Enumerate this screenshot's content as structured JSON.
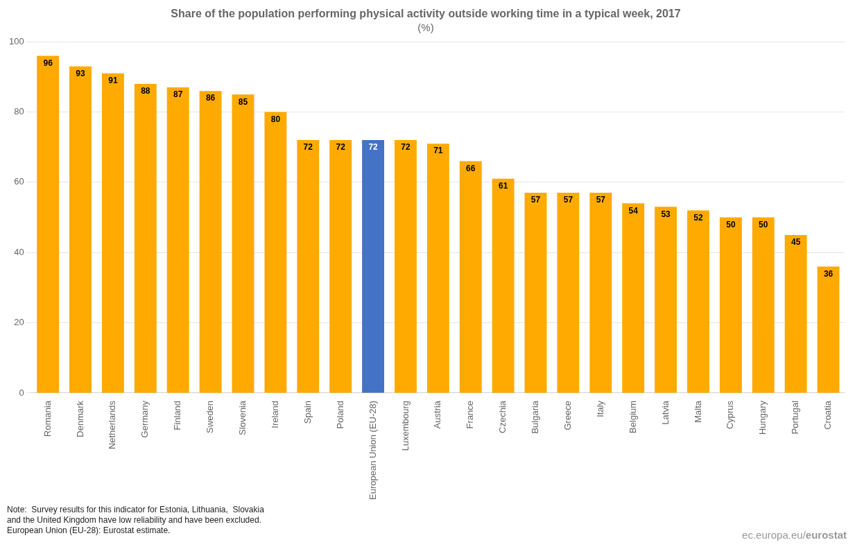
{
  "chart_data": {
    "type": "bar",
    "title": "Share of the population performing physical activity outside working time in a typical week, 2017",
    "subtitle": "(%)",
    "categories": [
      "Romania",
      "Denmark",
      "Netherlands",
      "Germany",
      "Finland",
      "Sweden",
      "Slovenia",
      "Ireland",
      "Spain",
      "Poland",
      "European Union (EU-28)",
      "Luxembourg",
      "Austria",
      "France",
      "Czechia",
      "Bulgaria",
      "Greece",
      "Italy",
      "Belgium",
      "Latvia",
      "Malta",
      "Cyprus",
      "Hungary",
      "Portugal",
      "Croatia"
    ],
    "values": [
      96,
      93,
      91,
      88,
      87,
      86,
      85,
      80,
      72,
      72,
      72,
      72,
      71,
      66,
      61,
      57,
      57,
      57,
      54,
      53,
      52,
      50,
      50,
      45,
      36
    ],
    "colors": [
      "#FFAA00",
      "#FFAA00",
      "#FFAA00",
      "#FFAA00",
      "#FFAA00",
      "#FFAA00",
      "#FFAA00",
      "#FFAA00",
      "#FFAA00",
      "#FFAA00",
      "#4472C4",
      "#FFAA00",
      "#FFAA00",
      "#FFAA00",
      "#FFAA00",
      "#FFAA00",
      "#FFAA00",
      "#FFAA00",
      "#FFAA00",
      "#FFAA00",
      "#FFAA00",
      "#FFAA00",
      "#FFAA00",
      "#FFAA00",
      "#FFAA00"
    ],
    "ylim": [
      0,
      100
    ],
    "yticks": [
      0,
      20,
      40,
      60,
      80,
      100
    ],
    "grid": true,
    "data_labels": true,
    "annotations": [
      "Note:  Survey results for this indicator for Estonia, Lithuania,  Slovakia\nand the United Kingdom have low reliability and have been excluded.\nEuropean Union (EU-28): Eurostat estimate.",
      "ec.europa.eu/",
      "eurostat"
    ]
  }
}
